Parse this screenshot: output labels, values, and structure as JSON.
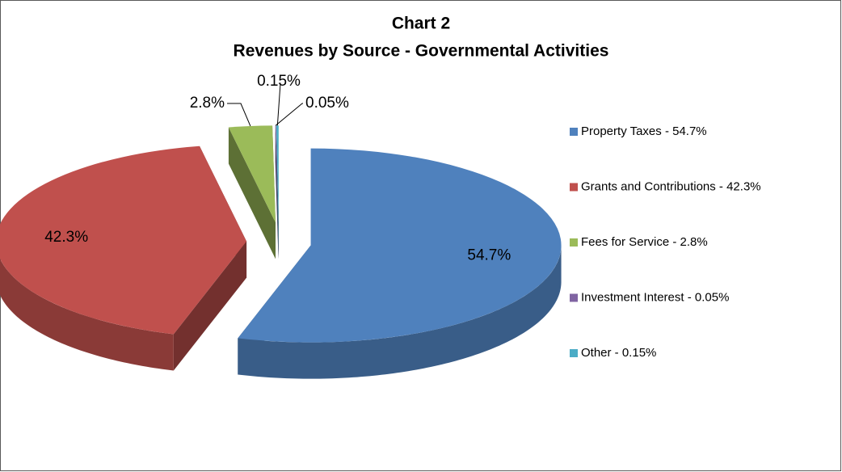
{
  "chart_data": {
    "type": "pie",
    "title": "Chart 2",
    "subtitle": "Revenues by Source - Governmental Activities",
    "series": [
      {
        "name": "Property Taxes - 54.7%",
        "color": "#4f81bd"
      },
      {
        "name": "Grants and Contributions - 42.3%",
        "color": "#c0504d"
      },
      {
        "name": "Fees for Service - 2.8%",
        "color": "#9bbb59"
      },
      {
        "name": "Investment Interest - 0.05%",
        "color": "#8064a2"
      },
      {
        "name": "Other - 0.15%",
        "color": "#4bacc6"
      }
    ],
    "values": [
      54.7,
      42.3,
      2.8,
      0.05,
      0.15
    ],
    "value_labels": [
      "54.7%",
      "42.3%",
      "2.8%",
      "0.05%",
      "0.15%"
    ],
    "legend": "right"
  }
}
